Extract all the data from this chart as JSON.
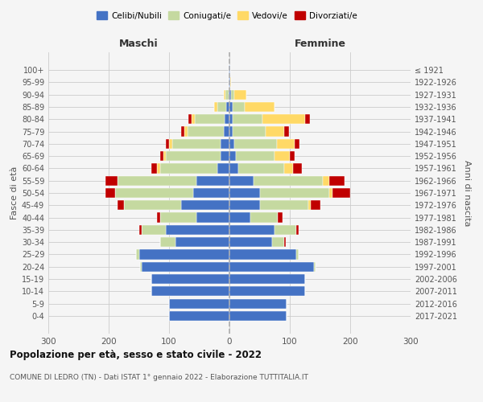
{
  "age_groups": [
    "0-4",
    "5-9",
    "10-14",
    "15-19",
    "20-24",
    "25-29",
    "30-34",
    "35-39",
    "40-44",
    "45-49",
    "50-54",
    "55-59",
    "60-64",
    "65-69",
    "70-74",
    "75-79",
    "80-84",
    "85-89",
    "90-94",
    "95-99",
    "100+"
  ],
  "birth_years": [
    "2017-2021",
    "2012-2016",
    "2007-2011",
    "2002-2006",
    "1997-2001",
    "1992-1996",
    "1987-1991",
    "1982-1986",
    "1977-1981",
    "1972-1976",
    "1967-1971",
    "1962-1966",
    "1957-1961",
    "1952-1956",
    "1947-1951",
    "1942-1946",
    "1937-1941",
    "1932-1936",
    "1927-1931",
    "1922-1926",
    "≤ 1921"
  ],
  "maschi": {
    "celibi": [
      100,
      100,
      130,
      130,
      145,
      150,
      90,
      105,
      55,
      80,
      60,
      55,
      20,
      15,
      15,
      10,
      8,
      5,
      2,
      1,
      1
    ],
    "coniugati": [
      0,
      0,
      0,
      0,
      3,
      5,
      25,
      40,
      60,
      95,
      130,
      130,
      95,
      90,
      80,
      60,
      50,
      15,
      5,
      0,
      0
    ],
    "vedovi": [
      0,
      0,
      0,
      0,
      0,
      0,
      0,
      0,
      0,
      0,
      0,
      0,
      5,
      5,
      5,
      5,
      5,
      5,
      2,
      0,
      0
    ],
    "divorziati": [
      0,
      0,
      0,
      0,
      0,
      0,
      0,
      5,
      5,
      10,
      15,
      20,
      10,
      5,
      5,
      5,
      5,
      0,
      0,
      0,
      0
    ]
  },
  "femmine": {
    "nubili": [
      95,
      95,
      125,
      125,
      140,
      110,
      70,
      75,
      35,
      50,
      50,
      40,
      15,
      10,
      8,
      5,
      5,
      5,
      3,
      1,
      1
    ],
    "coniugate": [
      0,
      0,
      0,
      0,
      3,
      5,
      20,
      35,
      45,
      80,
      115,
      115,
      75,
      65,
      70,
      55,
      50,
      20,
      5,
      0,
      0
    ],
    "vedove": [
      0,
      0,
      0,
      0,
      0,
      0,
      0,
      0,
      0,
      5,
      5,
      10,
      15,
      25,
      30,
      30,
      70,
      50,
      20,
      2,
      0
    ],
    "divorziate": [
      0,
      0,
      0,
      0,
      0,
      0,
      3,
      5,
      8,
      15,
      30,
      25,
      15,
      8,
      8,
      8,
      8,
      0,
      0,
      0,
      0
    ]
  },
  "colors": {
    "celibi": "#4472C4",
    "coniugati": "#c5d9a0",
    "vedovi": "#FFD966",
    "divorziati": "#C00000"
  },
  "title": "Popolazione per età, sesso e stato civile - 2022",
  "subtitle": "COMUNE DI LEDRO (TN) - Dati ISTAT 1° gennaio 2022 - Elaborazione TUTTITALIA.IT",
  "xlabel_left": "Maschi",
  "xlabel_right": "Femmine",
  "ylabel_left": "Fasce di età",
  "ylabel_right": "Anni di nascita",
  "xlim": 300,
  "legend_labels": [
    "Celibi/Nubili",
    "Coniugati/e",
    "Vedovi/e",
    "Divorziati/e"
  ]
}
